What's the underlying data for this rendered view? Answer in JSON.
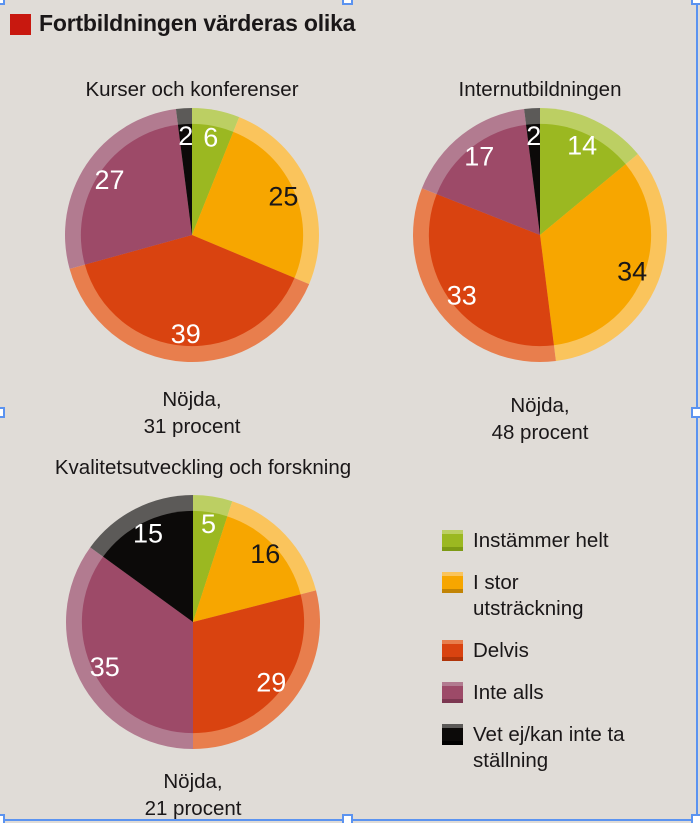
{
  "title": "Fortbildningen värderas olika",
  "styles": {
    "background": "#e0dcd7",
    "title_bullet_color": "#c8180f",
    "text_color": "#1a1718",
    "selection_color": "#5b93f0"
  },
  "chart_data": {
    "type": "pie",
    "direction": "clockwise",
    "start_angle_deg": 0,
    "series": [
      {
        "name": "Instämmer helt",
        "color": "#9bb821",
        "light": "#bccf63",
        "dark": "#7d9a14",
        "label_color": "#ffffff"
      },
      {
        "name": "I stor utsträckning",
        "color": "#f7a600",
        "light": "#fac45c",
        "dark": "#c28405",
        "label_color": "#1a1718"
      },
      {
        "name": "Delvis",
        "color": "#d94310",
        "light": "#e87e4d",
        "dark": "#b03409",
        "label_color": "#ffffff"
      },
      {
        "name": "Inte alls",
        "color": "#9d4a68",
        "light": "#b27b90",
        "dark": "#7c3751",
        "label_color": "#ffffff"
      },
      {
        "name": "Vet ej/kan inte ta ställning",
        "color": "#0c0a09",
        "light": "#5c5a58",
        "dark": "#000000",
        "label_color": "#ffffff"
      }
    ],
    "charts": [
      {
        "title": "Kurser och konferenser",
        "values": [
          6,
          25,
          39,
          27,
          2
        ],
        "nojda_procent": 31,
        "caption_line1": "Nöjda,",
        "caption_line2": "31 procent"
      },
      {
        "title": "Internutbildningen",
        "values": [
          14,
          34,
          33,
          17,
          2
        ],
        "nojda_procent": 48,
        "caption_line1": "Nöjda,",
        "caption_line2": "48 procent"
      },
      {
        "title": "Kvalitetsutveckling och forskning",
        "values": [
          5,
          16,
          29,
          35,
          15
        ],
        "nojda_procent": 21,
        "caption_line1": "Nöjda,",
        "caption_line2": "21 procent"
      }
    ]
  }
}
